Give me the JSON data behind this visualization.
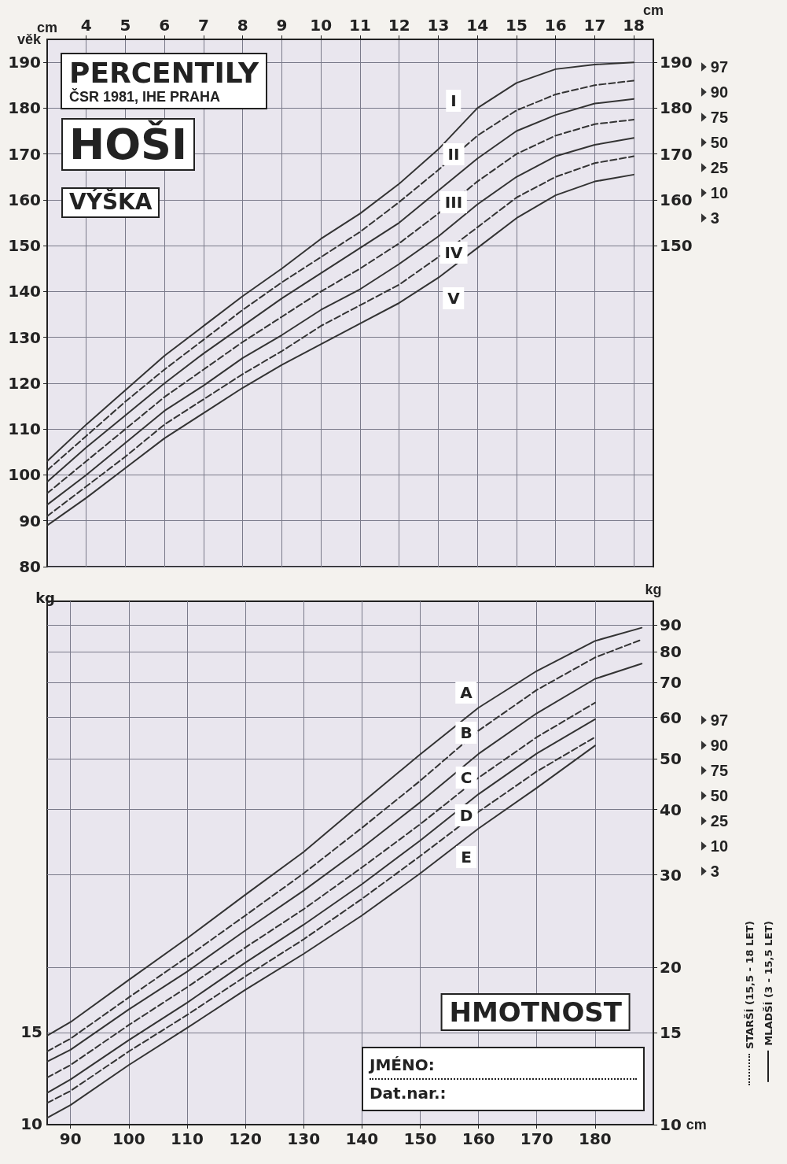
{
  "chart_data": [
    {
      "type": "line",
      "title": "PERCENTILY",
      "subtitle": "ČSR 1981, IHE PRAHA",
      "xlabel": "věk",
      "ylabel": "cm",
      "y2label": "cm",
      "annotations": [
        "HOŠI",
        "VÝŠKA",
        "I",
        "II",
        "III",
        "IV",
        "V"
      ],
      "x": [
        3,
        4,
        5,
        6,
        7,
        8,
        9,
        10,
        11,
        12,
        13,
        14,
        15,
        16,
        17,
        18
      ],
      "series": [
        {
          "name": "97",
          "color": "#333333",
          "line_style": "solid",
          "values": [
            103,
            111,
            118.5,
            126,
            132.5,
            139,
            145,
            151.5,
            157,
            163.5,
            171,
            180,
            185.5,
            188.5,
            189.5,
            190
          ]
        },
        {
          "name": "90",
          "color": "#333333",
          "line_style": "dashed",
          "values": [
            101,
            108.5,
            116,
            123,
            129.5,
            136,
            142,
            147.5,
            153,
            159.5,
            166.5,
            174,
            179.5,
            183,
            185,
            186
          ]
        },
        {
          "name": "75",
          "color": "#333333",
          "line_style": "solid",
          "values": [
            98.5,
            106,
            113,
            120,
            126.5,
            132.5,
            138.5,
            144,
            149.5,
            155,
            162,
            169,
            175,
            178.5,
            181,
            182
          ]
        },
        {
          "name": "50",
          "color": "#333333",
          "line_style": "dashed",
          "values": [
            96,
            103,
            110,
            117,
            123,
            129,
            134.5,
            140,
            145,
            150.5,
            157,
            164,
            170,
            174,
            176.5,
            177.5
          ]
        },
        {
          "name": "25",
          "color": "#333333",
          "line_style": "solid",
          "values": [
            93.5,
            100,
            107,
            114,
            119.5,
            125.5,
            130.5,
            136,
            140.5,
            146,
            152,
            159,
            165,
            169.5,
            172,
            173.5
          ]
        },
        {
          "name": "10",
          "color": "#333333",
          "line_style": "dashed",
          "values": [
            91,
            97.5,
            104,
            111,
            116.5,
            122,
            127,
            132.5,
            137,
            141.5,
            147.5,
            154,
            160.5,
            165,
            168,
            169.5
          ]
        },
        {
          "name": "3",
          "color": "#333333",
          "line_style": "solid",
          "values": [
            89,
            95,
            101.5,
            108,
            113.5,
            119,
            124,
            128.5,
            133,
            137.5,
            143,
            149.5,
            156,
            161,
            164,
            165.5
          ]
        }
      ],
      "xlim": [
        3,
        18.5
      ],
      "xticks": [
        4,
        5,
        6,
        7,
        8,
        9,
        10,
        11,
        12,
        13,
        14,
        15,
        16,
        17,
        18
      ],
      "ylim": [
        80,
        195
      ],
      "yticks": [
        80,
        90,
        100,
        110,
        120,
        130,
        140,
        150,
        160,
        170,
        180,
        190
      ],
      "y2lim": [
        80,
        195
      ],
      "y2ticks": [
        150,
        160,
        170,
        180,
        190
      ],
      "grid": true,
      "legend": "right"
    },
    {
      "type": "line",
      "title": "HMOTNOST",
      "xlabel": "cm",
      "ylabel": "kg",
      "annotations": [
        "JMÉNO:",
        "Dat.nar.:",
        "STARŠÍ (15,5 - 18 LET)",
        "MLADŠÍ (3 - 15,5 LET)",
        "A",
        "B",
        "C",
        "D",
        "E",
        "kg",
        "15",
        "10"
      ],
      "series": [
        {
          "name": "97",
          "color": "#333333",
          "line_style": "solid",
          "x": [
            86,
            90,
            100,
            110,
            120,
            130,
            140,
            150,
            160,
            170,
            180,
            188
          ],
          "values": [
            14.8,
            15.7,
            18.9,
            22.7,
            27.5,
            33.2,
            41.2,
            51,
            62.6,
            73.6,
            84,
            89
          ]
        },
        {
          "name": "90",
          "color": "#333333",
          "line_style": "dashed",
          "x": [
            86,
            90,
            100,
            110,
            120,
            130,
            140,
            150,
            160,
            170,
            180,
            188
          ],
          "values": [
            13.8,
            14.6,
            17.5,
            20.9,
            25.1,
            30.2,
            36.9,
            45.4,
            56.6,
            67.7,
            78.1,
            84.5
          ]
        },
        {
          "name": "75",
          "color": "#333333",
          "line_style": "solid",
          "x": [
            86,
            90,
            100,
            110,
            120,
            130,
            140,
            150,
            160,
            170,
            180,
            188
          ],
          "values": [
            13.2,
            13.9,
            16.6,
            19.6,
            23.5,
            28,
            33.8,
            41.3,
            51.1,
            61.1,
            71.1,
            76
          ]
        },
        {
          "name": "50",
          "color": "#333333",
          "line_style": "dashed",
          "x": [
            86,
            90,
            100,
            110,
            120,
            130,
            140,
            150,
            160,
            170,
            180
          ],
          "values": [
            12.3,
            13,
            15.5,
            18.3,
            21.8,
            25.8,
            31,
            37.5,
            46,
            55,
            64
          ]
        },
        {
          "name": "25",
          "color": "#333333",
          "line_style": "solid",
          "x": [
            86,
            90,
            100,
            110,
            120,
            130,
            140,
            150,
            160,
            170,
            180
          ],
          "values": [
            11.5,
            12.2,
            14.5,
            17.1,
            20.4,
            24.1,
            28.8,
            34.9,
            42.8,
            51.2,
            59.5
          ]
        },
        {
          "name": "10",
          "color": "#333333",
          "line_style": "dashed",
          "x": [
            86,
            90,
            100,
            110,
            120,
            130,
            140,
            150,
            160,
            170,
            180
          ],
          "values": [
            11,
            11.6,
            13.8,
            16.2,
            19.2,
            22.6,
            27,
            32.6,
            39.6,
            47.3,
            55
          ]
        },
        {
          "name": "3",
          "color": "#333333",
          "line_style": "solid",
          "x": [
            86,
            90,
            100,
            110,
            120,
            130,
            140,
            150,
            160,
            170,
            180
          ],
          "values": [
            10.3,
            10.9,
            13,
            15.3,
            18.1,
            21.2,
            25.1,
            30.2,
            36.8,
            44,
            53
          ]
        }
      ],
      "xlim": [
        86,
        190
      ],
      "xticks": [
        90,
        100,
        110,
        120,
        130,
        140,
        150,
        160,
        170,
        180
      ],
      "ylim": [
        10,
        100
      ],
      "yticks": [
        10,
        15,
        20,
        30,
        40,
        50,
        60,
        70,
        80,
        90
      ],
      "log": "y",
      "grid": true,
      "legend": "right"
    }
  ]
}
